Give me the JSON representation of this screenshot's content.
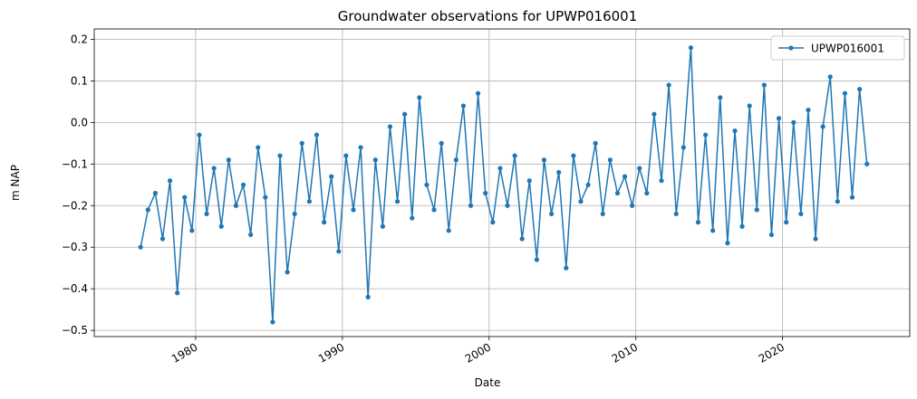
{
  "chart_data": {
    "type": "line",
    "title": "Groundwater observations for UPWP016001",
    "xlabel": "Date",
    "ylabel": "m NAP",
    "x_type": "date",
    "xlim": [
      "1973-02-01",
      "2028-09-01"
    ],
    "ylim": [
      -0.515,
      0.225
    ],
    "x_ticks": [
      "1980",
      "1990",
      "2000",
      "2010",
      "2020"
    ],
    "y_ticks": [
      "−0.5",
      "−0.4",
      "−0.3",
      "−0.2",
      "−0.1",
      "0.0",
      "0.1",
      "0.2"
    ],
    "y_tick_values": [
      -0.5,
      -0.4,
      -0.3,
      -0.2,
      -0.1,
      0.0,
      0.1,
      0.2
    ],
    "grid": true,
    "legend": "top-right",
    "marker": "circle",
    "colors": {
      "series": "#1f77b4"
    },
    "series": [
      {
        "name": "UPWP016001",
        "x": [
          "1976-04-01",
          "1976-10-01",
          "1977-04-01",
          "1977-10-01",
          "1978-04-01",
          "1978-10-01",
          "1979-04-01",
          "1979-10-01",
          "1980-04-01",
          "1980-10-01",
          "1981-04-01",
          "1981-10-01",
          "1982-04-01",
          "1982-10-01",
          "1983-04-01",
          "1983-10-01",
          "1984-04-01",
          "1984-10-01",
          "1985-04-01",
          "1985-10-01",
          "1986-04-01",
          "1986-10-01",
          "1987-04-01",
          "1987-10-01",
          "1988-04-01",
          "1988-10-01",
          "1989-04-01",
          "1989-10-01",
          "1990-04-01",
          "1990-10-01",
          "1991-04-01",
          "1991-10-01",
          "1992-04-01",
          "1992-10-01",
          "1993-04-01",
          "1993-10-01",
          "1994-04-01",
          "1994-10-01",
          "1995-04-01",
          "1995-10-01",
          "1996-04-01",
          "1996-10-01",
          "1997-04-01",
          "1997-10-01",
          "1998-04-01",
          "1998-10-01",
          "1999-04-01",
          "1999-10-01",
          "2000-04-01",
          "2000-10-01",
          "2001-04-01",
          "2001-10-01",
          "2002-04-01",
          "2002-10-01",
          "2003-04-01",
          "2003-10-01",
          "2004-04-01",
          "2004-10-01",
          "2005-04-01",
          "2005-10-01",
          "2006-04-01",
          "2006-10-01",
          "2007-04-01",
          "2007-10-01",
          "2008-04-01",
          "2008-10-01",
          "2009-04-01",
          "2009-10-01",
          "2010-04-01",
          "2010-10-01",
          "2011-04-01",
          "2011-10-01",
          "2012-04-01",
          "2012-10-01",
          "2013-04-01",
          "2013-10-01",
          "2014-04-01",
          "2014-10-01",
          "2015-04-01",
          "2015-10-01",
          "2016-04-01",
          "2016-10-01",
          "2017-04-01",
          "2017-10-01",
          "2018-04-01",
          "2018-10-01",
          "2019-04-01",
          "2019-10-01",
          "2020-04-01",
          "2020-10-01",
          "2021-04-01",
          "2021-10-01",
          "2022-04-01",
          "2022-10-01",
          "2023-04-01",
          "2023-10-01",
          "2024-04-01",
          "2024-10-01",
          "2025-04-01",
          "2025-10-01"
        ],
        "y": [
          -0.3,
          -0.21,
          -0.17,
          -0.28,
          -0.14,
          -0.41,
          -0.18,
          -0.26,
          -0.03,
          -0.22,
          -0.11,
          -0.25,
          -0.09,
          -0.2,
          -0.15,
          -0.27,
          -0.06,
          -0.18,
          -0.48,
          -0.08,
          -0.36,
          -0.22,
          -0.05,
          -0.19,
          -0.03,
          -0.24,
          -0.13,
          -0.31,
          -0.08,
          -0.21,
          -0.06,
          -0.42,
          -0.09,
          -0.25,
          -0.01,
          -0.19,
          0.02,
          -0.23,
          0.06,
          -0.15,
          -0.21,
          -0.05,
          -0.26,
          -0.09,
          0.04,
          -0.2,
          0.07,
          -0.17,
          -0.24,
          -0.11,
          -0.2,
          -0.08,
          -0.28,
          -0.14,
          -0.33,
          -0.09,
          -0.22,
          -0.12,
          -0.35,
          -0.08,
          -0.19,
          -0.15,
          -0.05,
          -0.22,
          -0.09,
          -0.17,
          -0.13,
          -0.2,
          -0.11,
          -0.17,
          0.02,
          -0.14,
          0.09,
          -0.22,
          -0.06,
          0.18,
          -0.24,
          -0.03,
          -0.26,
          0.06,
          -0.29,
          -0.02,
          -0.25,
          0.04,
          -0.21,
          0.09,
          -0.27,
          0.01,
          -0.24,
          0.0,
          -0.22,
          0.03,
          -0.28,
          -0.01,
          0.11,
          -0.19,
          0.07,
          -0.18,
          0.08,
          -0.1
        ]
      }
    ]
  }
}
